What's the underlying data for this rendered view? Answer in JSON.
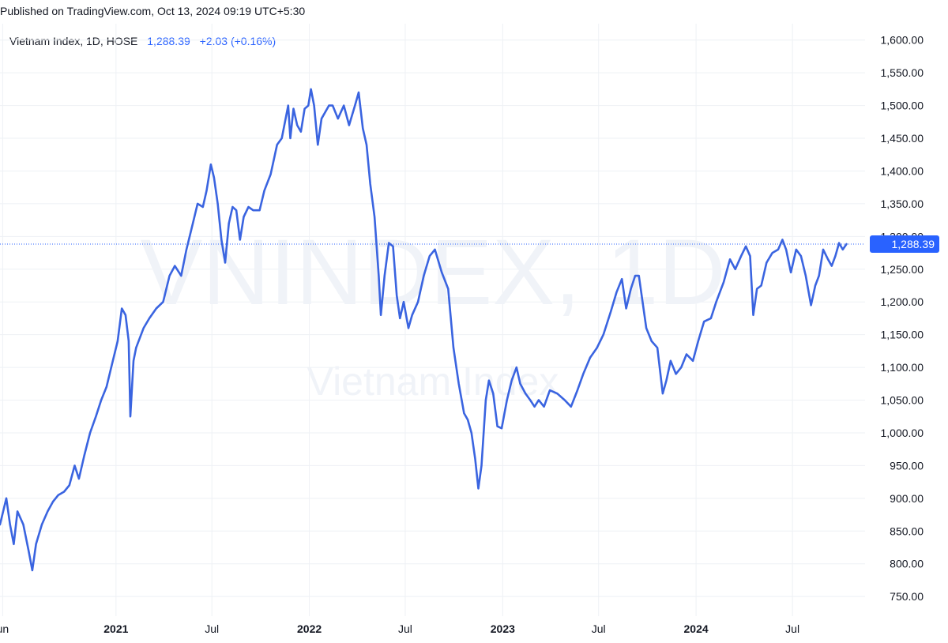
{
  "header": {
    "published": "Published on TradingView.com, Oct 13, 2024 09:19 UTC+5:30"
  },
  "legend": {
    "symbol": "Vietnam Index, 1D, HOSE",
    "last_value": "1,288.39",
    "change": "+2.03 (+0.16%)"
  },
  "watermark": {
    "line1": "VNINDEX, 1D",
    "line2": "Vietnam Index"
  },
  "colors": {
    "line": "#3a64e0",
    "grid": "#eef1f5",
    "price_label_bg": "#2962ff",
    "price_label_text": "#ffffff"
  },
  "chart_data": {
    "type": "line",
    "y_ticks": [
      "1,600.00",
      "1,550.00",
      "1,500.00",
      "1,450.00",
      "1,400.00",
      "1,350.00",
      "1,300.00",
      "1,250.00",
      "1,200.00",
      "1,150.00",
      "1,100.00",
      "1,050.00",
      "1,000.00",
      "950.00",
      "900.00",
      "850.00",
      "800.00",
      "750.00"
    ],
    "x_ticks": [
      {
        "date": "2020-06-01",
        "label": "un",
        "major": false
      },
      {
        "date": "2021-01-01",
        "label": "2021",
        "major": true
      },
      {
        "date": "2021-07-01",
        "label": "Jul",
        "major": false
      },
      {
        "date": "2022-01-01",
        "label": "2022",
        "major": true
      },
      {
        "date": "2022-07-01",
        "label": "Jul",
        "major": false
      },
      {
        "date": "2023-01-01",
        "label": "2023",
        "major": true
      },
      {
        "date": "2023-07-01",
        "label": "Jul",
        "major": false
      },
      {
        "date": "2024-01-01",
        "label": "2024",
        "major": true
      },
      {
        "date": "2024-07-01",
        "label": "Jul",
        "major": false
      }
    ],
    "ylim": [
      720,
      1625
    ],
    "xlim": [
      "2020-05-27",
      "2024-11-15"
    ],
    "last_price": 1288.39,
    "last_price_label": "1,288.39",
    "series": [
      {
        "points": [
          [
            "2020-05-27",
            860
          ],
          [
            "2020-06-08",
            900
          ],
          [
            "2020-06-15",
            860
          ],
          [
            "2020-06-22",
            830
          ],
          [
            "2020-06-29",
            880
          ],
          [
            "2020-07-10",
            860
          ],
          [
            "2020-07-20",
            820
          ],
          [
            "2020-07-27",
            790
          ],
          [
            "2020-08-03",
            830
          ],
          [
            "2020-08-14",
            860
          ],
          [
            "2020-08-25",
            880
          ],
          [
            "2020-09-04",
            895
          ],
          [
            "2020-09-14",
            905
          ],
          [
            "2020-09-25",
            910
          ],
          [
            "2020-10-05",
            920
          ],
          [
            "2020-10-15",
            950
          ],
          [
            "2020-10-23",
            930
          ],
          [
            "2020-11-02",
            965
          ],
          [
            "2020-11-13",
            1000
          ],
          [
            "2020-11-24",
            1025
          ],
          [
            "2020-12-04",
            1050
          ],
          [
            "2020-12-14",
            1070
          ],
          [
            "2020-12-23",
            1100
          ],
          [
            "2021-01-04",
            1140
          ],
          [
            "2021-01-12",
            1190
          ],
          [
            "2021-01-19",
            1180
          ],
          [
            "2021-01-25",
            1140
          ],
          [
            "2021-01-28",
            1025
          ],
          [
            "2021-02-03",
            1110
          ],
          [
            "2021-02-08",
            1130
          ],
          [
            "2021-02-22",
            1160
          ],
          [
            "2021-03-05",
            1175
          ],
          [
            "2021-03-18",
            1190
          ],
          [
            "2021-03-31",
            1200
          ],
          [
            "2021-04-12",
            1240
          ],
          [
            "2021-04-22",
            1255
          ],
          [
            "2021-05-04",
            1240
          ],
          [
            "2021-05-14",
            1280
          ],
          [
            "2021-05-26",
            1320
          ],
          [
            "2021-06-04",
            1350
          ],
          [
            "2021-06-14",
            1345
          ],
          [
            "2021-06-21",
            1370
          ],
          [
            "2021-06-29",
            1410
          ],
          [
            "2021-07-05",
            1390
          ],
          [
            "2021-07-12",
            1350
          ],
          [
            "2021-07-19",
            1295
          ],
          [
            "2021-07-26",
            1260
          ],
          [
            "2021-08-02",
            1320
          ],
          [
            "2021-08-09",
            1345
          ],
          [
            "2021-08-16",
            1340
          ],
          [
            "2021-08-23",
            1295
          ],
          [
            "2021-08-30",
            1330
          ],
          [
            "2021-09-08",
            1345
          ],
          [
            "2021-09-17",
            1340
          ],
          [
            "2021-09-29",
            1340
          ],
          [
            "2021-10-08",
            1370
          ],
          [
            "2021-10-20",
            1395
          ],
          [
            "2021-11-01",
            1440
          ],
          [
            "2021-11-10",
            1450
          ],
          [
            "2021-11-22",
            1500
          ],
          [
            "2021-11-26",
            1450
          ],
          [
            "2021-12-02",
            1495
          ],
          [
            "2021-12-09",
            1470
          ],
          [
            "2021-12-16",
            1460
          ],
          [
            "2021-12-23",
            1495
          ],
          [
            "2021-12-30",
            1500
          ],
          [
            "2022-01-04",
            1525
          ],
          [
            "2022-01-10",
            1500
          ],
          [
            "2022-01-17",
            1440
          ],
          [
            "2022-01-24",
            1480
          ],
          [
            "2022-02-07",
            1500
          ],
          [
            "2022-02-14",
            1500
          ],
          [
            "2022-02-24",
            1480
          ],
          [
            "2022-03-07",
            1500
          ],
          [
            "2022-03-17",
            1470
          ],
          [
            "2022-03-28",
            1500
          ],
          [
            "2022-04-04",
            1520
          ],
          [
            "2022-04-12",
            1465
          ],
          [
            "2022-04-19",
            1440
          ],
          [
            "2022-04-26",
            1380
          ],
          [
            "2022-05-04",
            1330
          ],
          [
            "2022-05-12",
            1240
          ],
          [
            "2022-05-16",
            1180
          ],
          [
            "2022-05-23",
            1240
          ],
          [
            "2022-05-31",
            1290
          ],
          [
            "2022-06-08",
            1285
          ],
          [
            "2022-06-15",
            1210
          ],
          [
            "2022-06-21",
            1175
          ],
          [
            "2022-06-28",
            1200
          ],
          [
            "2022-07-07",
            1160
          ],
          [
            "2022-07-14",
            1180
          ],
          [
            "2022-07-25",
            1200
          ],
          [
            "2022-08-05",
            1240
          ],
          [
            "2022-08-16",
            1270
          ],
          [
            "2022-08-26",
            1280
          ],
          [
            "2022-09-08",
            1245
          ],
          [
            "2022-09-20",
            1220
          ],
          [
            "2022-09-30",
            1130
          ],
          [
            "2022-10-10",
            1075
          ],
          [
            "2022-10-20",
            1030
          ],
          [
            "2022-10-27",
            1020
          ],
          [
            "2022-11-03",
            1000
          ],
          [
            "2022-11-10",
            960
          ],
          [
            "2022-11-16",
            915
          ],
          [
            "2022-11-22",
            950
          ],
          [
            "2022-11-30",
            1050
          ],
          [
            "2022-12-06",
            1080
          ],
          [
            "2022-12-14",
            1060
          ],
          [
            "2022-12-22",
            1010
          ],
          [
            "2022-12-30",
            1007
          ],
          [
            "2023-01-09",
            1050
          ],
          [
            "2023-01-18",
            1080
          ],
          [
            "2023-01-27",
            1100
          ],
          [
            "2023-02-03",
            1075
          ],
          [
            "2023-02-13",
            1060
          ],
          [
            "2023-02-22",
            1050
          ],
          [
            "2023-03-02",
            1040
          ],
          [
            "2023-03-10",
            1050
          ],
          [
            "2023-03-20",
            1040
          ],
          [
            "2023-03-31",
            1065
          ],
          [
            "2023-04-14",
            1060
          ],
          [
            "2023-04-28",
            1050
          ],
          [
            "2023-05-10",
            1040
          ],
          [
            "2023-05-22",
            1065
          ],
          [
            "2023-06-02",
            1090
          ],
          [
            "2023-06-15",
            1115
          ],
          [
            "2023-06-28",
            1130
          ],
          [
            "2023-07-10",
            1150
          ],
          [
            "2023-07-24",
            1185
          ],
          [
            "2023-08-04",
            1215
          ],
          [
            "2023-08-14",
            1235
          ],
          [
            "2023-08-22",
            1190
          ],
          [
            "2023-08-31",
            1220
          ],
          [
            "2023-09-08",
            1240
          ],
          [
            "2023-09-15",
            1240
          ],
          [
            "2023-09-22",
            1200
          ],
          [
            "2023-09-29",
            1160
          ],
          [
            "2023-10-09",
            1140
          ],
          [
            "2023-10-20",
            1130
          ],
          [
            "2023-10-30",
            1060
          ],
          [
            "2023-11-06",
            1080
          ],
          [
            "2023-11-14",
            1110
          ],
          [
            "2023-11-24",
            1090
          ],
          [
            "2023-12-04",
            1100
          ],
          [
            "2023-12-14",
            1120
          ],
          [
            "2023-12-26",
            1110
          ],
          [
            "2024-01-05",
            1140
          ],
          [
            "2024-01-16",
            1170
          ],
          [
            "2024-01-29",
            1175
          ],
          [
            "2024-02-08",
            1200
          ],
          [
            "2024-02-22",
            1230
          ],
          [
            "2024-03-05",
            1265
          ],
          [
            "2024-03-15",
            1250
          ],
          [
            "2024-03-26",
            1270
          ],
          [
            "2024-04-04",
            1285
          ],
          [
            "2024-04-12",
            1270
          ],
          [
            "2024-04-18",
            1180
          ],
          [
            "2024-04-25",
            1220
          ],
          [
            "2024-05-03",
            1225
          ],
          [
            "2024-05-13",
            1260
          ],
          [
            "2024-05-24",
            1275
          ],
          [
            "2024-06-04",
            1280
          ],
          [
            "2024-06-12",
            1295
          ],
          [
            "2024-06-19",
            1280
          ],
          [
            "2024-06-28",
            1245
          ],
          [
            "2024-07-08",
            1280
          ],
          [
            "2024-07-17",
            1270
          ],
          [
            "2024-07-26",
            1240
          ],
          [
            "2024-08-05",
            1195
          ],
          [
            "2024-08-13",
            1225
          ],
          [
            "2024-08-20",
            1240
          ],
          [
            "2024-08-28",
            1280
          ],
          [
            "2024-09-06",
            1265
          ],
          [
            "2024-09-13",
            1255
          ],
          [
            "2024-09-20",
            1270
          ],
          [
            "2024-09-27",
            1290
          ],
          [
            "2024-10-04",
            1280
          ],
          [
            "2024-10-11",
            1288.39
          ]
        ]
      }
    ]
  }
}
